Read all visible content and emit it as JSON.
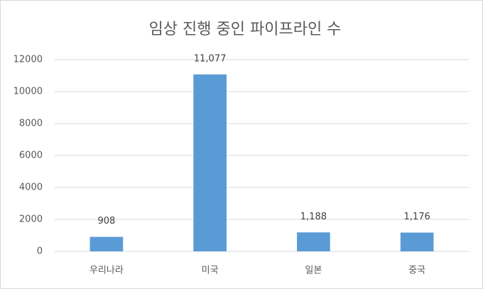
{
  "chart_data": {
    "type": "bar",
    "title": "임상 진행 중인 파이프라인 수",
    "categories": [
      "우리나라",
      "미국",
      "일본",
      "중국"
    ],
    "values": [
      908,
      11077,
      1188,
      1176
    ],
    "value_labels": [
      "908",
      "11,077",
      "1,188",
      "1,176"
    ],
    "color": "#5b9bd5",
    "ylim": [
      0,
      12000
    ],
    "yticks": [
      0,
      2000,
      4000,
      6000,
      8000,
      10000,
      12000
    ],
    "grid": true
  }
}
